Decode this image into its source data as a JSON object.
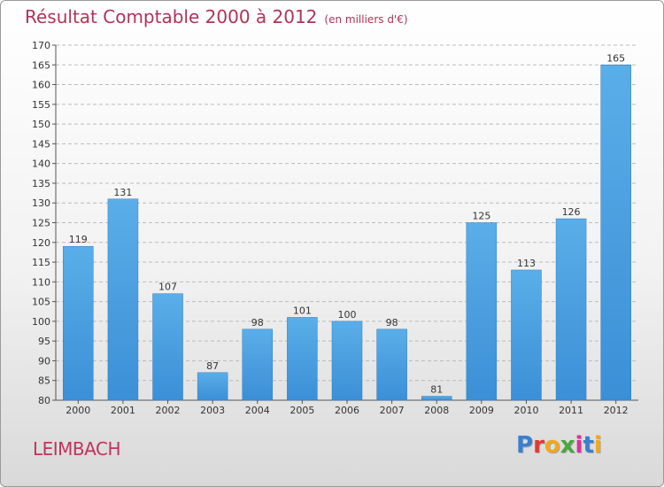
{
  "header": {
    "title": "Résultat Comptable 2000 à 2012",
    "subtitle": "(en milliers d'€)"
  },
  "footer": {
    "city": "LEIMBACH",
    "logo_letters": [
      "P",
      "r",
      "o",
      "x",
      "i",
      "t",
      "i"
    ],
    "logo_colors": [
      "#3a7fd0",
      "#e03a2f",
      "#f2a81d",
      "#4aa83c",
      "#d93399",
      "#3a7fd0",
      "#f2a81d"
    ]
  },
  "colors": {
    "bar": "#3b8fd6",
    "bar_light": "#5aaee8",
    "title": "#b0335a",
    "grid": "#bcbcbc"
  },
  "chart_data": {
    "type": "bar",
    "categories": [
      "2000",
      "2001",
      "2002",
      "2003",
      "2004",
      "2005",
      "2006",
      "2007",
      "2008",
      "2009",
      "2010",
      "2011",
      "2012"
    ],
    "values": [
      119,
      131,
      107,
      87,
      98,
      101,
      100,
      98,
      81,
      125,
      113,
      126,
      165
    ],
    "ylim": [
      80,
      170
    ],
    "yticks": [
      80,
      85,
      90,
      95,
      100,
      105,
      110,
      115,
      120,
      125,
      130,
      135,
      140,
      145,
      150,
      155,
      160,
      165,
      170
    ],
    "grid": true,
    "data_labels": true
  }
}
